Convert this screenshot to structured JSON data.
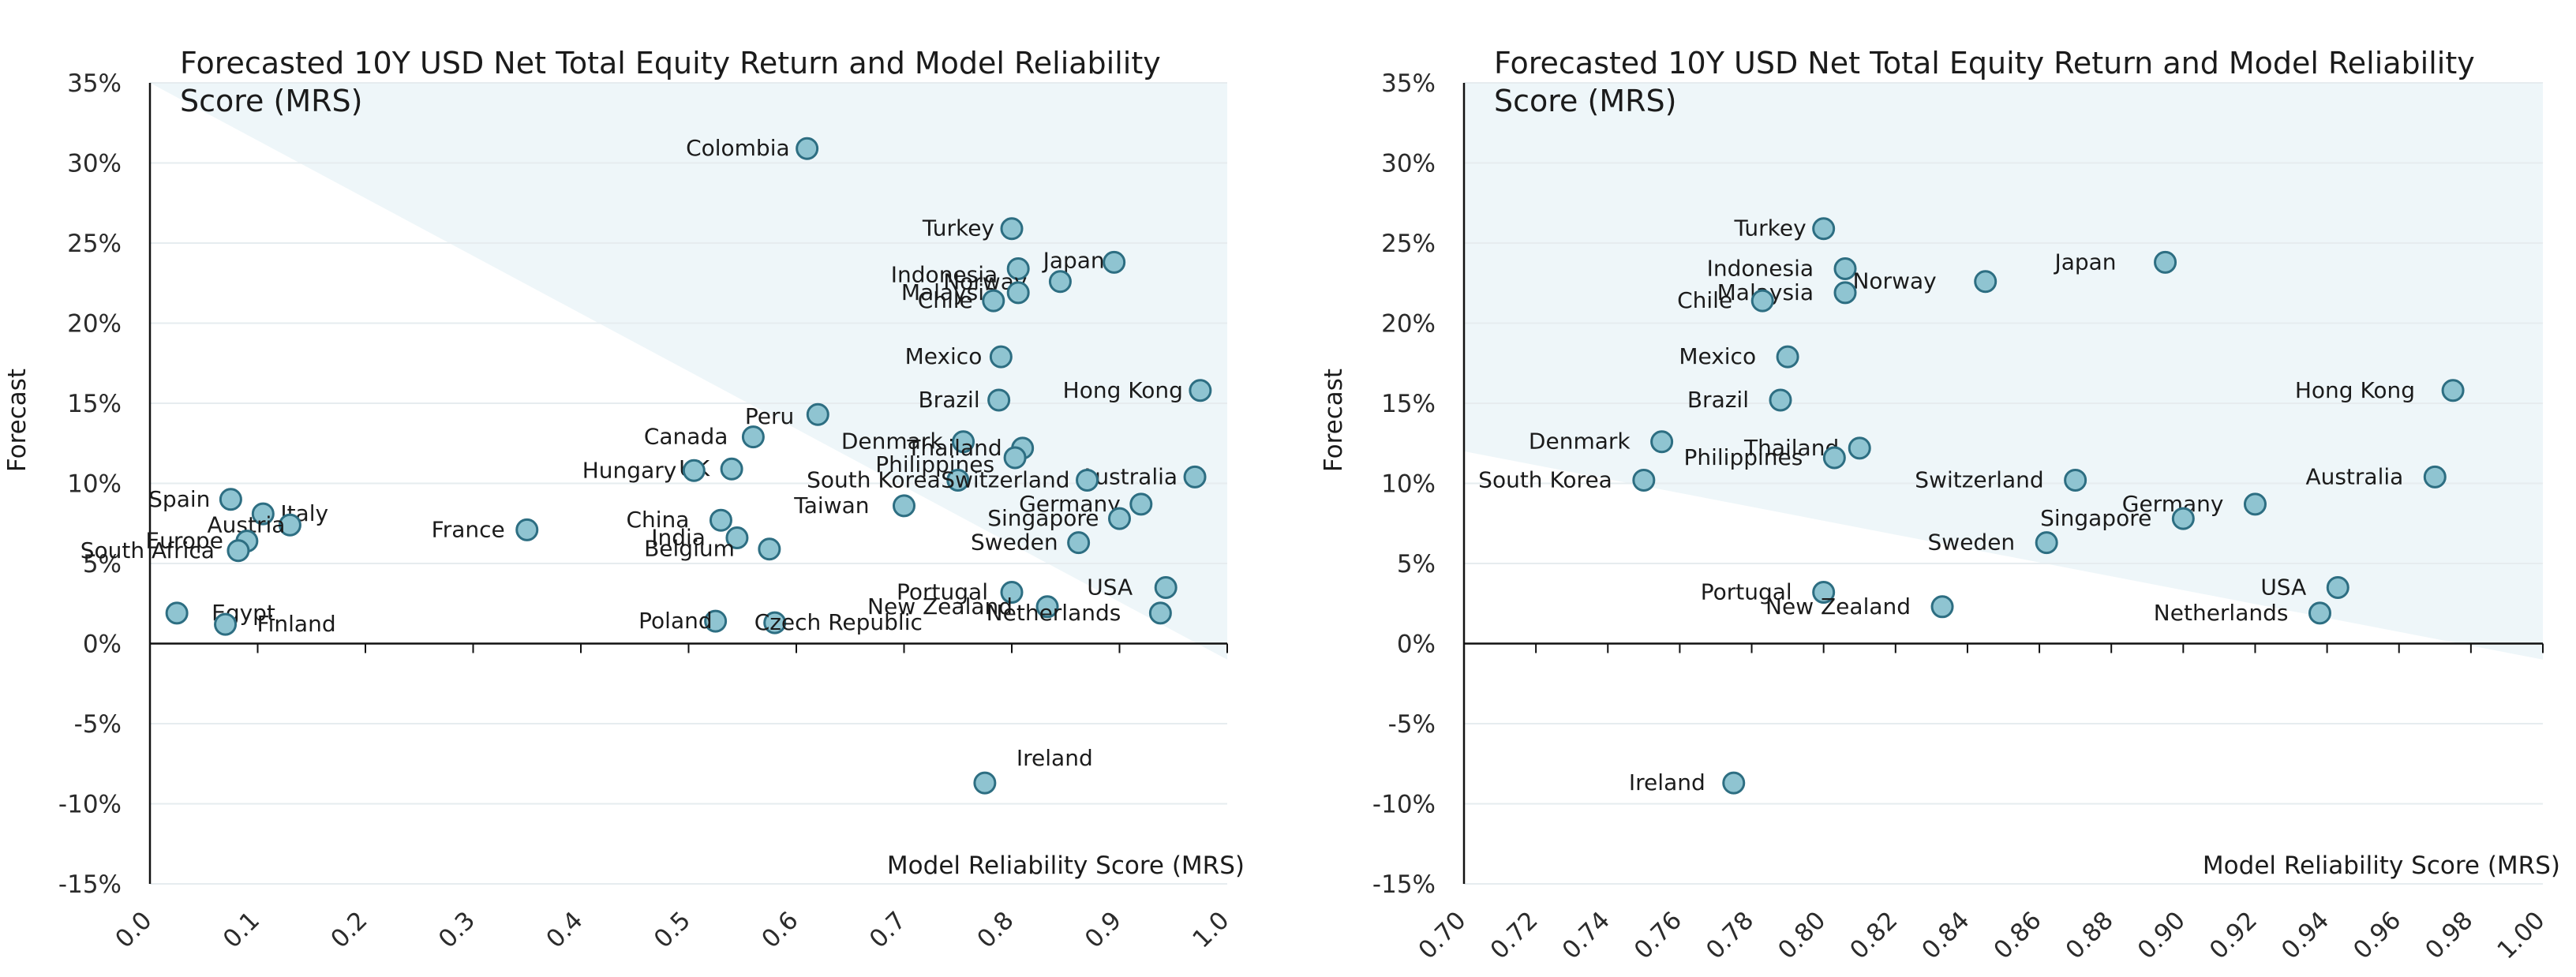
{
  "chart_data": [
    {
      "type": "scatter",
      "title_lines": [
        "Forecasted 10Y USD Net Total Equity Return and Model Reliability",
        "Score (MRS)"
      ],
      "xlabel": "Model Reliability Score (MRS)",
      "ylabel": "Forecast",
      "xlim": [
        0.0,
        1.0
      ],
      "ylim": [
        -15,
        35
      ],
      "xticks": [
        "0.0",
        "0.1",
        "0.2",
        "0.3",
        "0.4",
        "0.5",
        "0.6",
        "0.7",
        "0.8",
        "0.9",
        "1.0"
      ],
      "yticks": [
        "-15%",
        "-10%",
        "-5%",
        "0%",
        "5%",
        "10%",
        "15%",
        "20%",
        "25%",
        "30%",
        "35%"
      ],
      "grid": "horizontal",
      "shaded_region": {
        "x": [
          0.0,
          1.0
        ],
        "y_at_start": 35,
        "y_at_end": -1
      },
      "colors": {
        "marker_fill": "#8fc4d1",
        "marker_edge": "#2d6e82",
        "shade": "#eef6f9"
      },
      "points": [
        {
          "label": "Colombia",
          "x": 0.61,
          "y": 30.9
        },
        {
          "label": "Turkey",
          "x": 0.8,
          "y": 25.9
        },
        {
          "label": "Japan",
          "x": 0.895,
          "y": 23.8
        },
        {
          "label": "Indonesia",
          "x": 0.806,
          "y": 23.4
        },
        {
          "label": "Norway",
          "x": 0.845,
          "y": 22.6
        },
        {
          "label": "Malaysia",
          "x": 0.806,
          "y": 21.9
        },
        {
          "label": "Chile",
          "x": 0.783,
          "y": 21.4
        },
        {
          "label": "Mexico",
          "x": 0.79,
          "y": 17.9
        },
        {
          "label": "Hong Kong",
          "x": 0.975,
          "y": 15.8
        },
        {
          "label": "Brazil",
          "x": 0.788,
          "y": 15.2
        },
        {
          "label": "Peru",
          "x": 0.62,
          "y": 14.3
        },
        {
          "label": "Canada",
          "x": 0.56,
          "y": 12.9
        },
        {
          "label": "Denmark",
          "x": 0.755,
          "y": 12.6
        },
        {
          "label": "Thailand",
          "x": 0.81,
          "y": 12.2
        },
        {
          "label": "Philippines",
          "x": 0.803,
          "y": 11.6
        },
        {
          "label": "UK",
          "x": 0.54,
          "y": 10.9
        },
        {
          "label": "Hungary",
          "x": 0.505,
          "y": 10.8
        },
        {
          "label": "Australia",
          "x": 0.97,
          "y": 10.4
        },
        {
          "label": "South Korea",
          "x": 0.75,
          "y": 10.2
        },
        {
          "label": "Switzerland",
          "x": 0.87,
          "y": 10.2
        },
        {
          "label": "Spain",
          "x": 0.075,
          "y": 9.0
        },
        {
          "label": "Germany",
          "x": 0.92,
          "y": 8.7
        },
        {
          "label": "Taiwan",
          "x": 0.7,
          "y": 8.6
        },
        {
          "label": "Italy",
          "x": 0.105,
          "y": 8.1
        },
        {
          "label": "Singapore",
          "x": 0.9,
          "y": 7.8
        },
        {
          "label": "China",
          "x": 0.53,
          "y": 7.7
        },
        {
          "label": "Austria",
          "x": 0.13,
          "y": 7.4
        },
        {
          "label": "France",
          "x": 0.35,
          "y": 7.1
        },
        {
          "label": "India",
          "x": 0.545,
          "y": 6.6
        },
        {
          "label": "Europe",
          "x": 0.09,
          "y": 6.4
        },
        {
          "label": "Sweden",
          "x": 0.862,
          "y": 6.3
        },
        {
          "label": "Belgium",
          "x": 0.575,
          "y": 5.9
        },
        {
          "label": "South Africa",
          "x": 0.082,
          "y": 5.8
        },
        {
          "label": "USA",
          "x": 0.943,
          "y": 3.5
        },
        {
          "label": "Portugal",
          "x": 0.8,
          "y": 3.2
        },
        {
          "label": "New Zealand",
          "x": 0.833,
          "y": 2.3
        },
        {
          "label": "Netherlands",
          "x": 0.938,
          "y": 1.9
        },
        {
          "label": "Egypt",
          "x": 0.025,
          "y": 1.9
        },
        {
          "label": "Poland",
          "x": 0.525,
          "y": 1.4
        },
        {
          "label": "Czech Republic",
          "x": 0.58,
          "y": 1.3
        },
        {
          "label": "Finland",
          "x": 0.07,
          "y": 1.2
        },
        {
          "label": "Ireland",
          "x": 0.775,
          "y": -8.7
        }
      ]
    },
    {
      "type": "scatter",
      "title_lines": [
        "Forecasted 10Y USD Net Total Equity Return and Model Reliability",
        "Score (MRS)"
      ],
      "xlabel": "Model Reliability Score (MRS)",
      "ylabel": "Forecast",
      "xlim": [
        0.7,
        1.0
      ],
      "ylim": [
        -15,
        35
      ],
      "xticks": [
        "0.70",
        "0.72",
        "0.74",
        "0.76",
        "0.78",
        "0.80",
        "0.82",
        "0.84",
        "0.86",
        "0.88",
        "0.90",
        "0.92",
        "0.94",
        "0.96",
        "0.98",
        "1.00"
      ],
      "yticks": [
        "-15%",
        "-10%",
        "-5%",
        "0%",
        "5%",
        "10%",
        "15%",
        "20%",
        "25%",
        "30%",
        "35%"
      ],
      "grid": "horizontal",
      "shaded_region": {
        "x": [
          0.7,
          1.0
        ],
        "y_at_start": 12,
        "y_at_end": -1
      },
      "colors": {
        "marker_fill": "#8fc4d1",
        "marker_edge": "#2d6e82",
        "shade": "#eef6f9"
      },
      "points": [
        {
          "label": "Turkey",
          "x": 0.8,
          "y": 25.9
        },
        {
          "label": "Japan",
          "x": 0.895,
          "y": 23.8
        },
        {
          "label": "Indonesia",
          "x": 0.806,
          "y": 23.4
        },
        {
          "label": "Norway",
          "x": 0.845,
          "y": 22.6
        },
        {
          "label": "Malaysia",
          "x": 0.806,
          "y": 21.9
        },
        {
          "label": "Chile",
          "x": 0.783,
          "y": 21.4
        },
        {
          "label": "Mexico",
          "x": 0.79,
          "y": 17.9
        },
        {
          "label": "Hong Kong",
          "x": 0.975,
          "y": 15.8
        },
        {
          "label": "Brazil",
          "x": 0.788,
          "y": 15.2
        },
        {
          "label": "Denmark",
          "x": 0.755,
          "y": 12.6
        },
        {
          "label": "Thailand",
          "x": 0.81,
          "y": 12.2
        },
        {
          "label": "Philippines",
          "x": 0.803,
          "y": 11.6
        },
        {
          "label": "Australia",
          "x": 0.97,
          "y": 10.4
        },
        {
          "label": "South Korea",
          "x": 0.75,
          "y": 10.2
        },
        {
          "label": "Switzerland",
          "x": 0.87,
          "y": 10.2
        },
        {
          "label": "Germany",
          "x": 0.92,
          "y": 8.7
        },
        {
          "label": "Singapore",
          "x": 0.9,
          "y": 7.8
        },
        {
          "label": "Sweden",
          "x": 0.862,
          "y": 6.3
        },
        {
          "label": "USA",
          "x": 0.943,
          "y": 3.5
        },
        {
          "label": "Portugal",
          "x": 0.8,
          "y": 3.2
        },
        {
          "label": "New Zealand",
          "x": 0.833,
          "y": 2.3
        },
        {
          "label": "Netherlands",
          "x": 0.938,
          "y": 1.9
        },
        {
          "label": "Ireland",
          "x": 0.775,
          "y": -8.7
        }
      ]
    }
  ]
}
